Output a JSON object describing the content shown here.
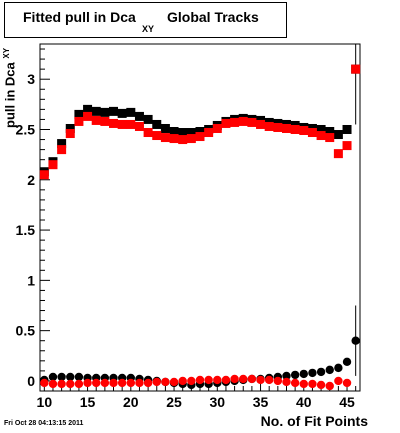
{
  "chart_data": {
    "type": "scatter",
    "title_main": "Fitted pull in Dca",
    "title_sub": "XY",
    "title_rest": "Global Tracks",
    "ylabel_main": "pull in Dca",
    "ylabel_sub": "XY",
    "xlabel": "No. of Fit Points",
    "xlim": [
      9.5,
      46.5
    ],
    "ylim": [
      -0.1,
      3.35
    ],
    "x_ticks": [
      10,
      15,
      20,
      25,
      30,
      35,
      40,
      45
    ],
    "y_ticks": [
      0,
      0.5,
      1,
      1.5,
      2,
      2.5,
      3
    ],
    "y_tick_labels": [
      "0",
      "0.5",
      "1",
      "1.5",
      "2",
      "2.5",
      "3"
    ],
    "series": [
      {
        "marker": "square",
        "color": "#000000",
        "x": [
          10,
          11,
          12,
          13,
          14,
          15,
          16,
          17,
          18,
          19,
          20,
          21,
          22,
          23,
          24,
          25,
          26,
          27,
          28,
          29,
          30,
          31,
          32,
          33,
          34,
          35,
          36,
          37,
          38,
          39,
          40,
          41,
          42,
          43,
          44,
          45,
          46
        ],
        "y": [
          2.08,
          2.18,
          2.36,
          2.51,
          2.65,
          2.7,
          2.68,
          2.67,
          2.68,
          2.66,
          2.67,
          2.63,
          2.6,
          2.55,
          2.51,
          2.48,
          2.47,
          2.47,
          2.48,
          2.5,
          2.54,
          2.58,
          2.6,
          2.61,
          2.6,
          2.59,
          2.57,
          2.56,
          2.55,
          2.54,
          2.52,
          2.51,
          2.5,
          2.48,
          2.45,
          2.5,
          3.1
        ]
      },
      {
        "marker": "square",
        "color": "#ff0000",
        "x": [
          10,
          11,
          12,
          13,
          14,
          15,
          16,
          17,
          18,
          19,
          20,
          21,
          22,
          23,
          24,
          25,
          26,
          27,
          28,
          29,
          30,
          31,
          32,
          33,
          34,
          35,
          36,
          37,
          38,
          39,
          40,
          41,
          42,
          43,
          44,
          45,
          46
        ],
        "y": [
          2.05,
          2.15,
          2.3,
          2.46,
          2.58,
          2.63,
          2.59,
          2.58,
          2.56,
          2.55,
          2.55,
          2.53,
          2.47,
          2.44,
          2.42,
          2.41,
          2.4,
          2.41,
          2.43,
          2.47,
          2.51,
          2.56,
          2.57,
          2.58,
          2.57,
          2.55,
          2.53,
          2.52,
          2.51,
          2.5,
          2.49,
          2.47,
          2.44,
          2.42,
          2.26,
          2.34,
          3.1
        ]
      },
      {
        "marker": "circle",
        "color": "#000000",
        "x": [
          10,
          11,
          12,
          13,
          14,
          15,
          16,
          17,
          18,
          19,
          20,
          21,
          22,
          23,
          24,
          25,
          26,
          27,
          28,
          29,
          30,
          31,
          32,
          33,
          34,
          35,
          36,
          37,
          38,
          39,
          40,
          41,
          42,
          43,
          44,
          45,
          46
        ],
        "y": [
          0.01,
          0.04,
          0.04,
          0.04,
          0.04,
          0.03,
          0.03,
          0.03,
          0.03,
          0.03,
          0.03,
          0.02,
          0.01,
          0.0,
          -0.01,
          -0.02,
          -0.03,
          -0.04,
          -0.03,
          -0.03,
          -0.02,
          -0.01,
          0.0,
          0.01,
          0.02,
          0.02,
          0.03,
          0.04,
          0.05,
          0.06,
          0.07,
          0.08,
          0.09,
          0.11,
          0.13,
          0.19,
          0.4
        ]
      },
      {
        "marker": "circle",
        "color": "#ff0000",
        "x": [
          10,
          11,
          12,
          13,
          14,
          15,
          16,
          17,
          18,
          19,
          20,
          21,
          22,
          23,
          24,
          25,
          26,
          27,
          28,
          29,
          30,
          31,
          32,
          33,
          34,
          35,
          36,
          37,
          38,
          39,
          40,
          41,
          42,
          43,
          44,
          45
        ],
        "y": [
          -0.02,
          -0.03,
          -0.03,
          -0.03,
          -0.03,
          -0.02,
          -0.02,
          -0.02,
          -0.02,
          -0.02,
          -0.02,
          -0.02,
          -0.02,
          -0.01,
          -0.01,
          -0.01,
          0.0,
          0.0,
          0.01,
          0.01,
          0.01,
          0.01,
          0.02,
          0.02,
          0.02,
          0.01,
          0.01,
          0.0,
          -0.01,
          -0.02,
          -0.03,
          -0.03,
          -0.04,
          -0.05,
          0.0,
          -0.02
        ]
      }
    ],
    "last_point_error": 0.35
  },
  "footer": {
    "timestamp": "Fri Oct 28 04:13:15 2011"
  }
}
